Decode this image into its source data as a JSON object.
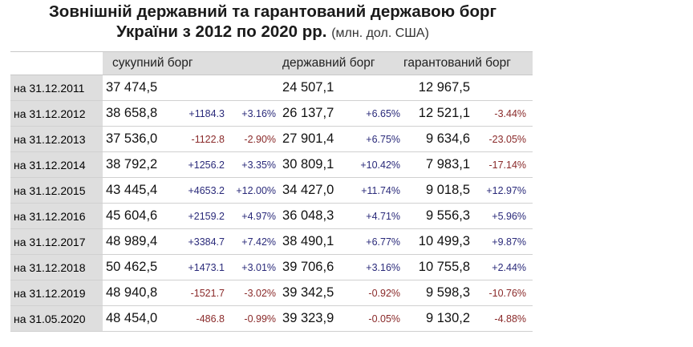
{
  "title": {
    "line1": "Зовнішній державний та гарантований державою борг",
    "line2": "України з 2012 по 2020 рр.",
    "unit": "(млн. дол. США)"
  },
  "headers": {
    "total": "сукупний борг",
    "state": "державний борг",
    "guaranteed": "гарантований борг"
  },
  "colors": {
    "positive": "#2a2a7a",
    "negative": "#8a2a2a",
    "header_bg": "#dedede"
  },
  "rows": [
    {
      "date": "на 31.12.2011",
      "total": "37 474,5",
      "total_abs": "",
      "total_pct": "",
      "state": "24 507,1",
      "state_pct": "",
      "guaranteed": "12 967,5",
      "guaranteed_pct": ""
    },
    {
      "date": "на 31.12.2012",
      "total": "38 658,8",
      "total_abs": "+1184.3",
      "total_pct": "+3.16%",
      "state": "26 137,7",
      "state_pct": "+6.65%",
      "guaranteed": "12 521,1",
      "guaranteed_pct": "-3.44%"
    },
    {
      "date": "на 31.12.2013",
      "total": "37 536,0",
      "total_abs": "-1122.8",
      "total_pct": "-2.90%",
      "state": "27 901,4",
      "state_pct": "+6.75%",
      "guaranteed": "9 634,6",
      "guaranteed_pct": "-23.05%"
    },
    {
      "date": "на 31.12.2014",
      "total": "38 792,2",
      "total_abs": "+1256.2",
      "total_pct": "+3.35%",
      "state": "30 809,1",
      "state_pct": "+10.42%",
      "guaranteed": "7 983,1",
      "guaranteed_pct": "-17.14%"
    },
    {
      "date": "на 31.12.2015",
      "total": "43 445,4",
      "total_abs": "+4653.2",
      "total_pct": "+12.00%",
      "state": "34 427,0",
      "state_pct": "+11.74%",
      "guaranteed": "9 018,5",
      "guaranteed_pct": "+12.97%"
    },
    {
      "date": "на 31.12.2016",
      "total": "45 604,6",
      "total_abs": "+2159.2",
      "total_pct": "+4.97%",
      "state": "36 048,3",
      "state_pct": "+4.71%",
      "guaranteed": "9 556,3",
      "guaranteed_pct": "+5.96%"
    },
    {
      "date": "на 31.12.2017",
      "total": "48 989,4",
      "total_abs": "+3384.7",
      "total_pct": "+7.42%",
      "state": "38 490,1",
      "state_pct": "+6.77%",
      "guaranteed": "10 499,3",
      "guaranteed_pct": "+9.87%"
    },
    {
      "date": "на 31.12.2018",
      "total": "50 462,5",
      "total_abs": "+1473.1",
      "total_pct": "+3.01%",
      "state": "39 706,6",
      "state_pct": "+3.16%",
      "guaranteed": "10 755,8",
      "guaranteed_pct": "+2.44%"
    },
    {
      "date": "на 31.12.2019",
      "total": "48 940,8",
      "total_abs": "-1521.7",
      "total_pct": "-3.02%",
      "state": "39 342,5",
      "state_pct": "-0.92%",
      "guaranteed": "9 598,3",
      "guaranteed_pct": "-10.76%"
    },
    {
      "date": "на 31.05.2020",
      "total": "48 454,0",
      "total_abs": "-486.8",
      "total_pct": "-0.99%",
      "state": "39 323,9",
      "state_pct": "-0.05%",
      "guaranteed": "9 130,2",
      "guaranteed_pct": "-4.88%"
    }
  ]
}
